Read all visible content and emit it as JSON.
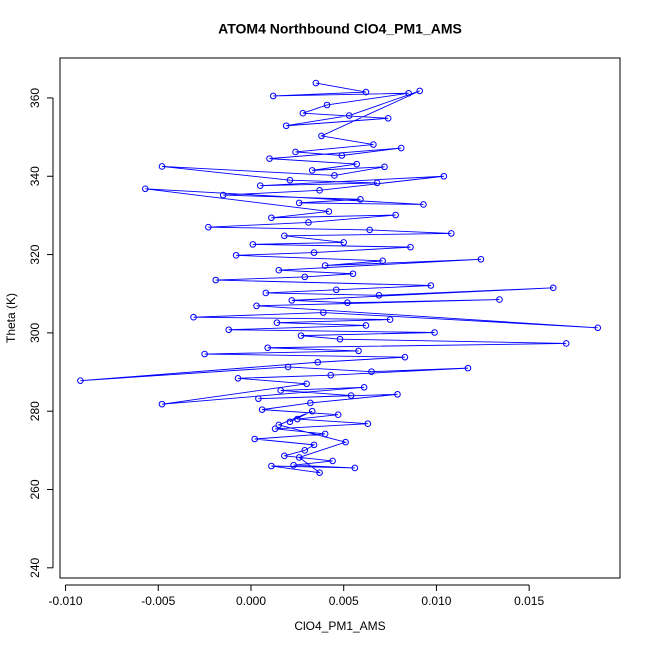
{
  "chart_data": {
    "type": "line",
    "title": "ATOM4 Northbound ClO4_PM1_AMS",
    "x_label": "ClO4_PM1_AMS",
    "y_label": "Theta (K)",
    "markers": "open-circle",
    "xlim": [
      -0.0103,
      0.0199
    ],
    "ylim": [
      237.4,
      370.2
    ],
    "xticks": [
      {
        "value": -0.01,
        "label": "-0.010"
      },
      {
        "value": -0.005,
        "label": "-0.005"
      },
      {
        "value": 0,
        "label": "0.000"
      },
      {
        "value": 0.005,
        "label": "0.005"
      },
      {
        "value": 0.01,
        "label": "0.010"
      },
      {
        "value": 0.015,
        "label": "0.015"
      }
    ],
    "yticks": [
      240,
      260,
      280,
      300,
      320,
      340,
      360
    ],
    "x": [
      0.0035,
      0.0062,
      0.0012,
      0.0085,
      0.0041,
      0.0028,
      0.0074,
      0.0019,
      0.0053,
      0.0091,
      0.0038,
      0.0066,
      0.0024,
      0.0049,
      0.0081,
      0.001,
      0.0057,
      0.0033,
      0.0072,
      0.0045,
      -0.0048,
      0.0021,
      0.0068,
      0.0005,
      0.0104,
      0.0037,
      -0.0015,
      0.0059,
      0.0026,
      0.0093,
      -0.0057,
      0.0042,
      0.0011,
      0.0078,
      0.0031,
      -0.0023,
      0.0064,
      0.0108,
      0.0018,
      0.005,
      0.0001,
      0.0086,
      0.0034,
      -0.0008,
      0.0071,
      0.004,
      0.0124,
      0.0015,
      0.0055,
      0.0029,
      -0.0019,
      0.0097,
      0.0046,
      0.0008,
      0.0069,
      0.0163,
      0.0022,
      0.0052,
      0.0134,
      0.0003,
      0.0187,
      0.0039,
      -0.0031,
      0.0075,
      0.0014,
      0.0062,
      -0.0012,
      0.0099,
      0.0027,
      0.0048,
      0.017,
      0.0009,
      0.0058,
      -0.0025,
      0.0083,
      0.0036,
      -0.0092,
      0.002,
      0.0065,
      0.0117,
      0.0043,
      -0.0007,
      0.003,
      -0.0048,
      0.0061,
      0.0016,
      0.0054,
      0.0004,
      0.0079,
      0.0032,
      0.0006,
      0.0047,
      0.0025,
      0.0063,
      0.0013,
      0.004,
      0.0002,
      0.0034,
      0.0029,
      0.0018,
      0.0044,
      0.0023,
      0.0056,
      0.0011,
      0.0037,
      0.0026,
      0.0051,
      0.0015,
      0.0033,
      0.0021
    ],
    "series": [
      {
        "color": "#0000ff",
        "values": [
          363.8,
          361.5,
          360.5,
          361.2,
          358.2,
          356.1,
          354.8,
          352.9,
          355.5,
          361.8,
          350.3,
          348.1,
          346.2,
          345.3,
          347.2,
          344.5,
          343.1,
          341.5,
          342.4,
          340.2,
          342.5,
          339.0,
          338.3,
          337.6,
          340.0,
          336.4,
          335.2,
          334.1,
          333.2,
          332.8,
          336.8,
          331.0,
          329.4,
          330.1,
          328.2,
          327.0,
          326.3,
          325.4,
          324.8,
          323.1,
          322.6,
          321.9,
          320.5,
          319.8,
          318.4,
          317.2,
          318.8,
          316.0,
          315.1,
          314.3,
          313.5,
          312.1,
          311.0,
          310.2,
          309.6,
          311.5,
          308.3,
          307.7,
          308.5,
          306.9,
          301.3,
          305.2,
          304.0,
          303.4,
          302.6,
          301.9,
          300.8,
          300.1,
          299.3,
          298.4,
          297.3,
          296.2,
          295.4,
          294.6,
          293.8,
          292.5,
          287.8,
          291.3,
          290.1,
          291.0,
          289.2,
          288.4,
          287.0,
          281.8,
          286.1,
          285.3,
          284.0,
          283.2,
          284.3,
          282.1,
          280.4,
          279.1,
          278.0,
          276.8,
          275.5,
          274.2,
          272.9,
          271.4,
          270.0,
          268.6,
          267.3,
          266.2,
          265.5,
          266.0,
          264.3,
          268.2,
          272.1,
          276.5,
          280.0,
          277.3
        ]
      }
    ]
  }
}
